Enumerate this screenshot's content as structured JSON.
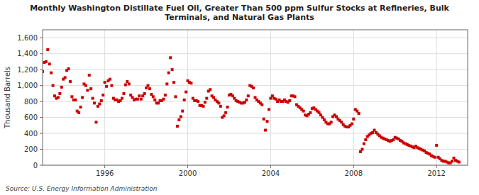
{
  "chart_data": {
    "type": "scatter",
    "title": "Monthly Washington Distillate Fuel Oil, Greater Than 500 ppm Sulfur Stocks at Refineries, Bulk\nTerminals, and Natural Gas Plants",
    "y_label": "Thousand Barrels",
    "annotations": [
      "Source: U.S. Energy Information Administration"
    ],
    "color": "#cc0000",
    "marker": "square",
    "grid": true,
    "xlim": [
      1993.0,
      2013.5
    ],
    "ylim": [
      0,
      1700
    ],
    "xticks": [
      1996,
      2000,
      2004,
      2008,
      2012
    ],
    "yticks": [
      0,
      200,
      400,
      600,
      800,
      {
        "value": 1000,
        "label": "1,000"
      },
      {
        "value": 1200,
        "label": "1,200"
      },
      {
        "value": 1400,
        "label": "1,400"
      },
      {
        "value": 1600,
        "label": "1,600"
      }
    ],
    "x": [
      1993.0,
      1993.083,
      1993.167,
      1993.25,
      1993.333,
      1993.417,
      1993.5,
      1993.583,
      1993.667,
      1993.75,
      1993.833,
      1993.917,
      1994.0,
      1994.083,
      1994.167,
      1994.25,
      1994.333,
      1994.417,
      1994.5,
      1994.583,
      1994.667,
      1994.75,
      1994.833,
      1994.917,
      1995.0,
      1995.083,
      1995.167,
      1995.25,
      1995.333,
      1995.417,
      1995.5,
      1995.583,
      1995.667,
      1995.75,
      1995.833,
      1995.917,
      1996.0,
      1996.083,
      1996.167,
      1996.25,
      1996.333,
      1996.417,
      1996.5,
      1996.583,
      1996.667,
      1996.75,
      1996.833,
      1996.917,
      1997.0,
      1997.083,
      1997.167,
      1997.25,
      1997.333,
      1997.417,
      1997.5,
      1997.583,
      1997.667,
      1997.75,
      1997.833,
      1997.917,
      1998.0,
      1998.083,
      1998.167,
      1998.25,
      1998.333,
      1998.417,
      1998.5,
      1998.583,
      1998.667,
      1998.75,
      1998.833,
      1998.917,
      1999.0,
      1999.083,
      1999.167,
      1999.25,
      1999.333,
      1999.417,
      1999.5,
      1999.583,
      1999.667,
      1999.75,
      1999.833,
      1999.917,
      2000.0,
      2000.083,
      2000.167,
      2000.25,
      2000.333,
      2000.417,
      2000.5,
      2000.583,
      2000.667,
      2000.75,
      2000.833,
      2000.917,
      2001.0,
      2001.083,
      2001.167,
      2001.25,
      2001.333,
      2001.417,
      2001.5,
      2001.583,
      2001.667,
      2001.75,
      2001.833,
      2001.917,
      2002.0,
      2002.083,
      2002.167,
      2002.25,
      2002.333,
      2002.417,
      2002.5,
      2002.583,
      2002.667,
      2002.75,
      2002.833,
      2002.917,
      2003.0,
      2003.083,
      2003.167,
      2003.25,
      2003.333,
      2003.417,
      2003.5,
      2003.583,
      2003.667,
      2003.75,
      2003.833,
      2003.917,
      2004.0,
      2004.083,
      2004.167,
      2004.25,
      2004.333,
      2004.417,
      2004.5,
      2004.583,
      2004.667,
      2004.75,
      2004.833,
      2004.917,
      2005.0,
      2005.083,
      2005.167,
      2005.25,
      2005.333,
      2005.417,
      2005.5,
      2005.583,
      2005.667,
      2005.75,
      2005.833,
      2005.917,
      2006.0,
      2006.083,
      2006.167,
      2006.25,
      2006.333,
      2006.417,
      2006.5,
      2006.583,
      2006.667,
      2006.75,
      2006.833,
      2006.917,
      2007.0,
      2007.083,
      2007.167,
      2007.25,
      2007.333,
      2007.417,
      2007.5,
      2007.583,
      2007.667,
      2007.75,
      2007.833,
      2007.917,
      2008.0,
      2008.083,
      2008.167,
      2008.25,
      2008.333,
      2008.417,
      2008.5,
      2008.583,
      2008.667,
      2008.75,
      2008.833,
      2008.917,
      2009.0,
      2009.083,
      2009.167,
      2009.25,
      2009.333,
      2009.417,
      2009.5,
      2009.583,
      2009.667,
      2009.75,
      2009.833,
      2009.917,
      2010.0,
      2010.083,
      2010.167,
      2010.25,
      2010.333,
      2010.417,
      2010.5,
      2010.583,
      2010.667,
      2010.75,
      2010.833,
      2010.917,
      2011.0,
      2011.083,
      2011.167,
      2011.25,
      2011.333,
      2011.417,
      2011.5,
      2011.583,
      2011.667,
      2011.75,
      2011.833,
      2011.917,
      2012.0,
      2012.083,
      2012.167,
      2012.25,
      2012.333,
      2012.417,
      2012.5,
      2012.583,
      2012.667,
      2012.75,
      2012.833,
      2012.917,
      2013.0,
      2013.083
    ],
    "values": [
      1175,
      1290,
      1300,
      1450,
      1270,
      1160,
      1000,
      870,
      840,
      850,
      900,
      980,
      1080,
      1100,
      1190,
      1210,
      1050,
      860,
      820,
      820,
      680,
      660,
      730,
      850,
      1020,
      1000,
      940,
      1130,
      960,
      840,
      780,
      540,
      740,
      770,
      810,
      880,
      1040,
      990,
      1060,
      1080,
      1000,
      840,
      820,
      820,
      800,
      810,
      840,
      900,
      1010,
      1050,
      1020,
      880,
      850,
      820,
      830,
      830,
      870,
      830,
      870,
      900,
      970,
      1000,
      960,
      890,
      860,
      820,
      780,
      780,
      810,
      810,
      830,
      880,
      1020,
      1160,
      1350,
      1200,
      1040,
      860,
      490,
      570,
      610,
      680,
      820,
      920,
      1060,
      1040,
      1030,
      840,
      810,
      810,
      800,
      750,
      750,
      740,
      790,
      840,
      930,
      950,
      870,
      850,
      820,
      800,
      780,
      740,
      600,
      620,
      660,
      730,
      880,
      890,
      870,
      840,
      810,
      800,
      790,
      780,
      780,
      790,
      820,
      870,
      1000,
      990,
      970,
      850,
      820,
      800,
      780,
      760,
      580,
      440,
      550,
      700,
      840,
      870,
      840,
      830,
      800,
      820,
      800,
      800,
      820,
      800,
      790,
      810,
      870,
      870,
      860,
      760,
      740,
      720,
      700,
      680,
      630,
      620,
      640,
      660,
      710,
      720,
      700,
      680,
      660,
      630,
      600,
      570,
      540,
      520,
      520,
      540,
      610,
      630,
      610,
      580,
      560,
      540,
      510,
      490,
      480,
      480,
      500,
      520,
      580,
      700,
      680,
      650,
      170,
      200,
      270,
      320,
      360,
      380,
      400,
      410,
      440,
      410,
      390,
      370,
      350,
      340,
      330,
      320,
      310,
      300,
      310,
      320,
      350,
      340,
      330,
      310,
      300,
      280,
      270,
      260,
      250,
      240,
      230,
      220,
      240,
      220,
      210,
      200,
      190,
      180,
      160,
      150,
      140,
      120,
      110,
      100,
      250,
      100,
      80,
      60,
      50,
      50,
      40,
      30,
      30,
      50,
      90,
      60,
      50,
      40
    ]
  }
}
